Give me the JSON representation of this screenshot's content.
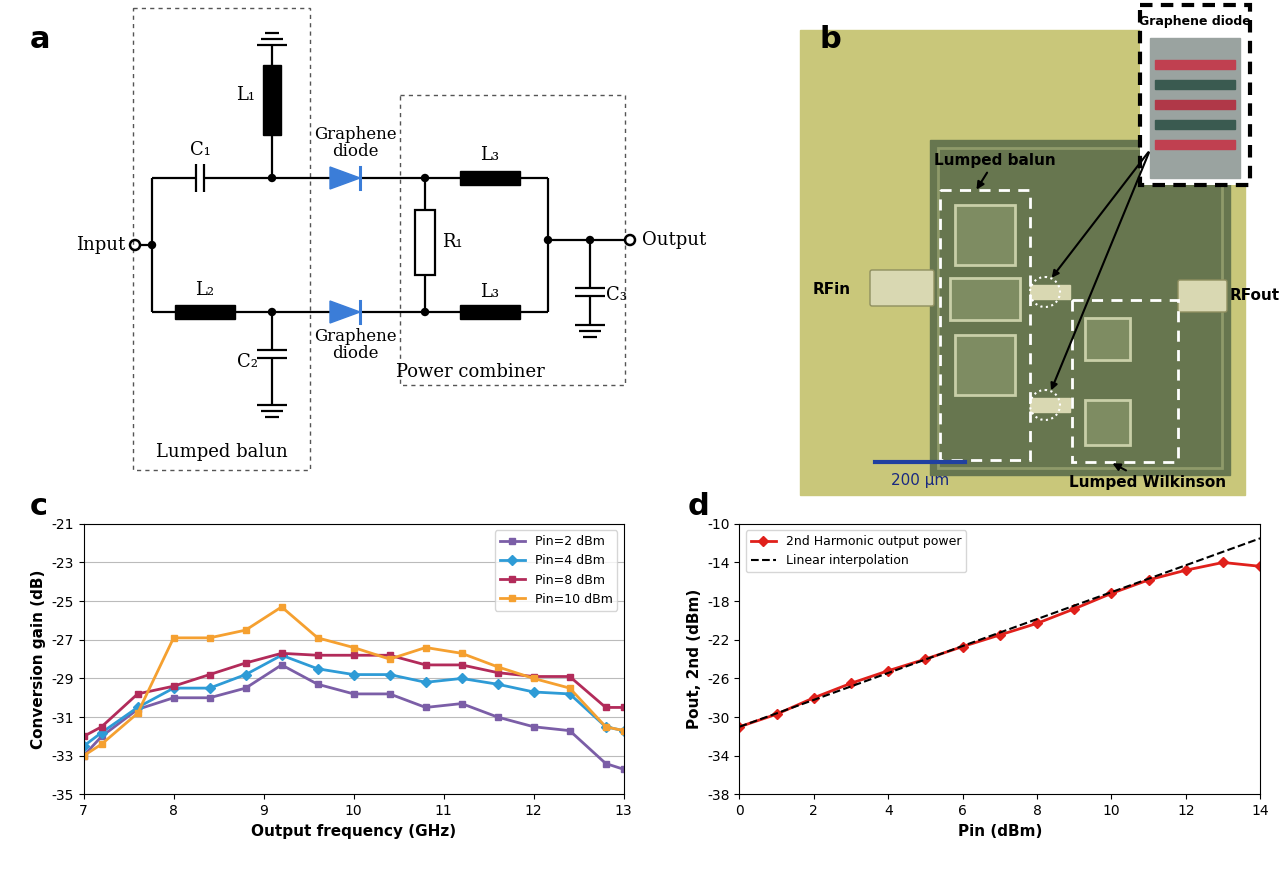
{
  "diagram": {
    "panel_label": "a",
    "boxes": {
      "balun": "Lumped balun",
      "combiner": "Power combiner"
    },
    "ports": {
      "input": "Input",
      "output": "Output"
    },
    "components": {
      "C1": "C₁",
      "L1": "L₁",
      "L2": "L₂",
      "C2": "C₂",
      "R1": "R₁",
      "L3_top": "L₃",
      "L3_bottom": "L₃",
      "C3": "C₃"
    },
    "diodes": [
      "Graphene\ndiode",
      "Graphene\ndiode"
    ]
  },
  "photo": {
    "panel_label": "b",
    "inset": "Graphene diode",
    "balun": "Lumped balun",
    "wilkinson": "Lumped Wilkinson",
    "rf_in": "RFin",
    "rf_out": "RFout",
    "scale_bar": "200 µm"
  },
  "chart_data": [
    {
      "type": "line",
      "title": "c",
      "x_label": "Output frequency (GHz)",
      "y_label": "Conversion gain (dB)",
      "x": [
        7,
        7.2,
        7.6,
        8,
        8.4,
        8.8,
        9.2,
        9.6,
        10,
        10.4,
        10.8,
        11.2,
        11.6,
        12,
        12.4,
        12.8,
        13
      ],
      "series": [
        {
          "name": "Pin=2 dBm",
          "color": "#7b5ea7",
          "marker": "square",
          "line_style": "solid",
          "values": [
            -33,
            -32,
            -30.6,
            -30,
            -30,
            -29.5,
            -28.3,
            -29.3,
            -29.8,
            -29.8,
            -30.5,
            -30.3,
            -31,
            -31.5,
            -31.7,
            -33.4,
            -33.7
          ]
        },
        {
          "name": "Pin=4 dBm",
          "color": "#2e9bd6",
          "marker": "diamond",
          "line_style": "solid",
          "values": [
            -32.5,
            -31.8,
            -30.5,
            -29.5,
            -29.5,
            -28.8,
            -27.8,
            -28.5,
            -28.8,
            -28.8,
            -29.2,
            -29,
            -29.3,
            -29.7,
            -29.8,
            -31.5,
            -31.7
          ]
        },
        {
          "name": "Pin=8 dBm",
          "color": "#b22b5a",
          "marker": "square",
          "line_style": "solid",
          "values": [
            -32,
            -31.5,
            -29.8,
            -29.4,
            -28.8,
            -28.2,
            -27.7,
            -27.8,
            -27.8,
            -27.8,
            -28.3,
            -28.3,
            -28.7,
            -28.9,
            -28.9,
            -30.5,
            -30.5
          ]
        },
        {
          "name": "Pin=10 dBm",
          "color": "#f5a030",
          "marker": "square",
          "line_style": "solid",
          "values": [
            -33,
            -32.4,
            -30.8,
            -26.9,
            -26.9,
            -26.5,
            -25.3,
            -26.9,
            -27.4,
            -28,
            -27.4,
            -27.7,
            -28.4,
            -29,
            -29.5,
            -31.5,
            -31.7
          ]
        }
      ],
      "xlim": [
        7,
        13
      ],
      "xticks": [
        7,
        8,
        9,
        10,
        11,
        12,
        13
      ],
      "ylim": [
        -35,
        -21
      ],
      "yticks": [
        -35,
        -33,
        -31,
        -29,
        -27,
        -25,
        -23,
        -21
      ],
      "grid": true,
      "legend": "upper right"
    },
    {
      "type": "line",
      "title": "d",
      "x_label": "Pin (dBm)",
      "y_label": "Pout, 2nd (dBm)",
      "series": [
        {
          "name": "2nd Harmonic output power",
          "color": "#e0201b",
          "marker": "diamond",
          "line_style": "solid",
          "x": [
            0,
            1,
            2,
            3,
            4,
            5,
            6,
            7,
            8,
            9,
            10,
            11,
            12,
            13,
            14
          ],
          "values": [
            -31,
            -29.7,
            -28,
            -26.5,
            -25.2,
            -24,
            -22.7,
            -21.5,
            -20.3,
            -18.8,
            -17.2,
            -15.8,
            -14.8,
            -14,
            -14.4
          ]
        },
        {
          "name": "Linear interpolation",
          "color": "#000000",
          "marker": "none",
          "line_style": "dashed",
          "x": [
            0,
            14
          ],
          "values": [
            -31,
            -11.5
          ]
        }
      ],
      "xlim": [
        0,
        14
      ],
      "xticks": [
        0,
        2,
        4,
        6,
        8,
        10,
        12,
        14
      ],
      "ylim": [
        -38,
        -10
      ],
      "yticks": [
        -38,
        -34,
        -30,
        -26,
        -22,
        -18,
        -14,
        -10
      ],
      "grid": false,
      "legend": "upper left"
    }
  ]
}
